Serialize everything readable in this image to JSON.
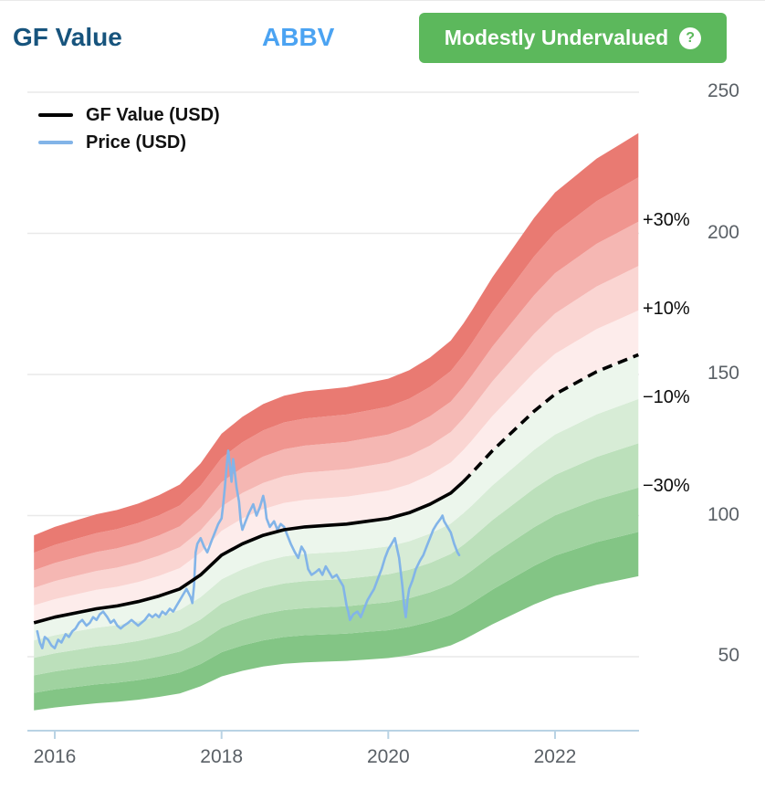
{
  "header": {
    "title": "GF Value",
    "ticker": "ABBV",
    "badge": {
      "label": "Modestly Undervalued",
      "help_icon": "?"
    }
  },
  "legend": [
    {
      "label": "GF Value (USD)",
      "color": "#000000"
    },
    {
      "label": "Price (USD)",
      "color": "#82b4e8"
    }
  ],
  "colors": {
    "title": "#17547d",
    "ticker": "#4ba3f2",
    "badge_bg": "#5cb85c",
    "axis": "#b9d3e4",
    "gridline": "#e9e9e9",
    "tick_text": "#5a6066"
  },
  "chart_data": {
    "type": "line",
    "title": "GF Value chart for ABBV",
    "x_ticks": [
      2016,
      2018,
      2020,
      2022
    ],
    "y_ticks": [
      50,
      100,
      150,
      200,
      250
    ],
    "xlim": [
      2015.75,
      2023.0
    ],
    "ylim": [
      30,
      260
    ],
    "grid": true,
    "legend_position": "top-left",
    "band_multipliers": [
      0.5,
      0.6,
      0.7,
      0.8,
      0.9,
      1.0,
      1.1,
      1.2,
      1.3,
      1.4,
      1.5
    ],
    "band_colors_above": [
      "#fdeceb",
      "#fad5d2",
      "#f5b7b3",
      "#f0958f",
      "#e97a72"
    ],
    "band_colors_below": [
      "#ecf6ec",
      "#d7ecd6",
      "#bce0bb",
      "#a0d3a0",
      "#83c585"
    ],
    "band_labels": [
      {
        "text": "+30%",
        "multiplier": 1.3
      },
      {
        "text": "+10%",
        "multiplier": 1.1
      },
      {
        "text": "−10%",
        "multiplier": 0.9
      },
      {
        "text": "−30%",
        "multiplier": 0.7
      }
    ],
    "gf_value_solid_until": 2020.9,
    "series": [
      {
        "name": "GF Value (USD)",
        "color": "#000000",
        "style": "solid-then-dashed",
        "points": [
          [
            2015.75,
            62
          ],
          [
            2016,
            64
          ],
          [
            2016.25,
            65.5
          ],
          [
            2016.5,
            67
          ],
          [
            2016.75,
            68
          ],
          [
            2017,
            69.5
          ],
          [
            2017.25,
            71.5
          ],
          [
            2017.5,
            74
          ],
          [
            2017.75,
            79
          ],
          [
            2018,
            86
          ],
          [
            2018.25,
            90
          ],
          [
            2018.5,
            93
          ],
          [
            2018.75,
            95
          ],
          [
            2019,
            96
          ],
          [
            2019.25,
            96.5
          ],
          [
            2019.5,
            97
          ],
          [
            2019.75,
            98
          ],
          [
            2020,
            99
          ],
          [
            2020.25,
            101
          ],
          [
            2020.5,
            104
          ],
          [
            2020.75,
            108
          ],
          [
            2020.9,
            112
          ],
          [
            2021,
            115
          ],
          [
            2021.25,
            123
          ],
          [
            2021.5,
            130
          ],
          [
            2021.75,
            137
          ],
          [
            2022,
            143
          ],
          [
            2022.25,
            147
          ],
          [
            2022.5,
            151
          ],
          [
            2022.75,
            154
          ],
          [
            2023,
            157
          ]
        ]
      },
      {
        "name": "Price (USD)",
        "color": "#82b4e8",
        "style": "solid",
        "points": [
          [
            2015.79,
            59
          ],
          [
            2015.82,
            55
          ],
          [
            2015.85,
            53
          ],
          [
            2015.88,
            57
          ],
          [
            2015.92,
            56
          ],
          [
            2015.96,
            54
          ],
          [
            2016.0,
            53
          ],
          [
            2016.04,
            56
          ],
          [
            2016.08,
            55
          ],
          [
            2016.13,
            58
          ],
          [
            2016.17,
            57
          ],
          [
            2016.21,
            59
          ],
          [
            2016.25,
            60
          ],
          [
            2016.29,
            62
          ],
          [
            2016.33,
            63
          ],
          [
            2016.38,
            61
          ],
          [
            2016.42,
            62
          ],
          [
            2016.46,
            64
          ],
          [
            2016.5,
            63
          ],
          [
            2016.54,
            65
          ],
          [
            2016.58,
            66
          ],
          [
            2016.63,
            64
          ],
          [
            2016.67,
            62
          ],
          [
            2016.71,
            63
          ],
          [
            2016.75,
            61
          ],
          [
            2016.79,
            60
          ],
          [
            2016.83,
            61
          ],
          [
            2016.88,
            62
          ],
          [
            2016.92,
            63
          ],
          [
            2016.96,
            62
          ],
          [
            2017.0,
            61
          ],
          [
            2017.04,
            62
          ],
          [
            2017.08,
            63
          ],
          [
            2017.13,
            65
          ],
          [
            2017.17,
            64
          ],
          [
            2017.21,
            65
          ],
          [
            2017.25,
            64
          ],
          [
            2017.29,
            66
          ],
          [
            2017.33,
            65
          ],
          [
            2017.38,
            67
          ],
          [
            2017.42,
            66
          ],
          [
            2017.46,
            68
          ],
          [
            2017.5,
            70
          ],
          [
            2017.54,
            72
          ],
          [
            2017.58,
            74
          ],
          [
            2017.63,
            71
          ],
          [
            2017.65,
            69
          ],
          [
            2017.67,
            75
          ],
          [
            2017.69,
            87
          ],
          [
            2017.71,
            90
          ],
          [
            2017.75,
            92
          ],
          [
            2017.79,
            89
          ],
          [
            2017.83,
            87
          ],
          [
            2017.88,
            91
          ],
          [
            2017.92,
            94
          ],
          [
            2017.96,
            97
          ],
          [
            2018.0,
            99
          ],
          [
            2018.02,
            104
          ],
          [
            2018.04,
            110
          ],
          [
            2018.06,
            117
          ],
          [
            2018.08,
            123
          ],
          [
            2018.1,
            118
          ],
          [
            2018.12,
            112
          ],
          [
            2018.14,
            120
          ],
          [
            2018.16,
            115
          ],
          [
            2018.18,
            110
          ],
          [
            2018.21,
            105
          ],
          [
            2018.23,
            98
          ],
          [
            2018.25,
            95
          ],
          [
            2018.29,
            98
          ],
          [
            2018.33,
            101
          ],
          [
            2018.38,
            104
          ],
          [
            2018.42,
            100
          ],
          [
            2018.46,
            103
          ],
          [
            2018.5,
            107
          ],
          [
            2018.52,
            104
          ],
          [
            2018.54,
            99
          ],
          [
            2018.58,
            96
          ],
          [
            2018.63,
            98
          ],
          [
            2018.67,
            95
          ],
          [
            2018.71,
            97
          ],
          [
            2018.75,
            96
          ],
          [
            2018.79,
            93
          ],
          [
            2018.83,
            90
          ],
          [
            2018.88,
            87
          ],
          [
            2018.92,
            85
          ],
          [
            2018.96,
            89
          ],
          [
            2019.0,
            87
          ],
          [
            2019.04,
            81
          ],
          [
            2019.08,
            79
          ],
          [
            2019.13,
            80
          ],
          [
            2019.17,
            81
          ],
          [
            2019.21,
            79
          ],
          [
            2019.25,
            82
          ],
          [
            2019.29,
            80
          ],
          [
            2019.33,
            78
          ],
          [
            2019.38,
            79
          ],
          [
            2019.42,
            77
          ],
          [
            2019.46,
            75
          ],
          [
            2019.5,
            68
          ],
          [
            2019.52,
            66
          ],
          [
            2019.54,
            63
          ],
          [
            2019.58,
            65
          ],
          [
            2019.63,
            66
          ],
          [
            2019.67,
            64
          ],
          [
            2019.71,
            67
          ],
          [
            2019.75,
            70
          ],
          [
            2019.79,
            72
          ],
          [
            2019.83,
            74
          ],
          [
            2019.88,
            78
          ],
          [
            2019.92,
            81
          ],
          [
            2019.96,
            85
          ],
          [
            2020.0,
            88
          ],
          [
            2020.04,
            90
          ],
          [
            2020.08,
            92
          ],
          [
            2020.1,
            89
          ],
          [
            2020.13,
            85
          ],
          [
            2020.15,
            80
          ],
          [
            2020.17,
            75
          ],
          [
            2020.19,
            68
          ],
          [
            2020.21,
            64
          ],
          [
            2020.23,
            70
          ],
          [
            2020.25,
            74
          ],
          [
            2020.29,
            77
          ],
          [
            2020.33,
            81
          ],
          [
            2020.38,
            84
          ],
          [
            2020.42,
            86
          ],
          [
            2020.46,
            89
          ],
          [
            2020.5,
            92
          ],
          [
            2020.54,
            95
          ],
          [
            2020.58,
            97
          ],
          [
            2020.63,
            99
          ],
          [
            2020.65,
            100
          ],
          [
            2020.67,
            98
          ],
          [
            2020.71,
            96
          ],
          [
            2020.75,
            94
          ],
          [
            2020.79,
            90
          ],
          [
            2020.83,
            87
          ],
          [
            2020.85,
            86
          ]
        ]
      }
    ]
  }
}
